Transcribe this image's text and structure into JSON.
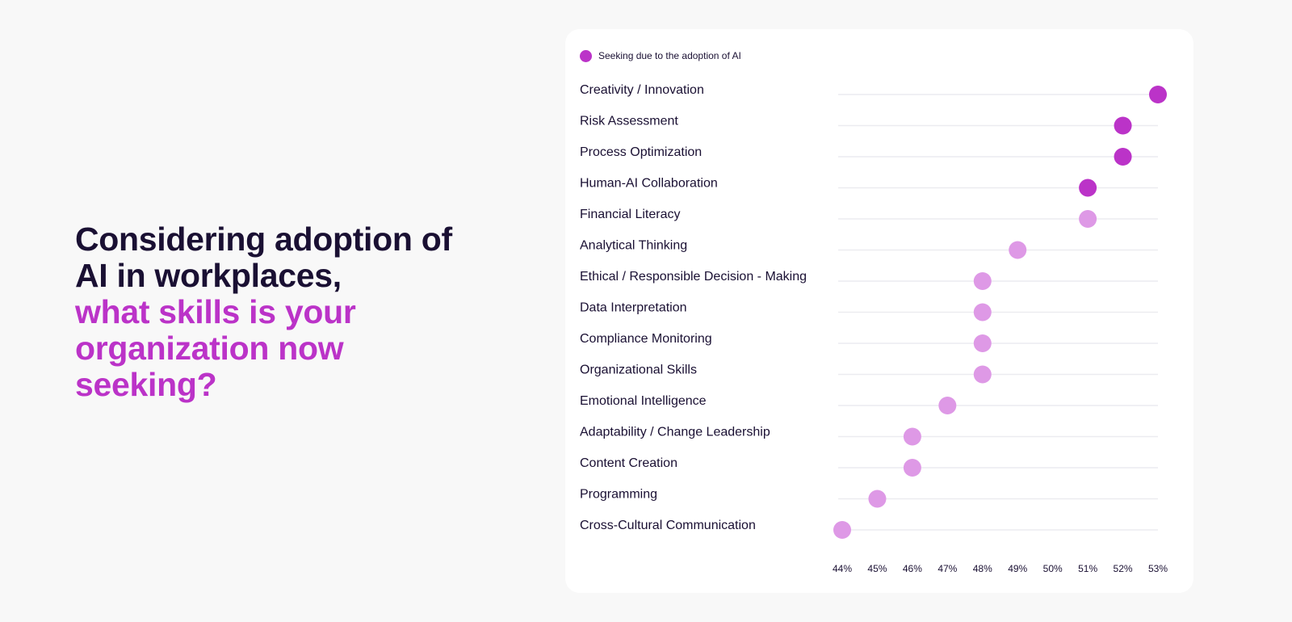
{
  "headline": {
    "dark": "Considering adoption of AI in workplaces,",
    "accent": "what skills is your organization now seeking?"
  },
  "colors": {
    "accent": "#bb33c8",
    "highlight": "#bb33c8",
    "muted": "#de99e6",
    "text": "#1a1033",
    "gridline": "#ececf0",
    "background": "#f8f8f8",
    "card": "#ffffff"
  },
  "chart_data": {
    "type": "dot",
    "legend": [
      {
        "name": "Seeking due to the adoption of AI",
        "color": "#bb33c8"
      }
    ],
    "categories": [
      "Creativity / Innovation",
      "Risk Assessment",
      "Process Optimization",
      "Human-AI Collaboration",
      "Financial Literacy",
      "Analytical Thinking",
      "Ethical / Responsible Decision - Making",
      "Data Interpretation",
      "Compliance Monitoring",
      "Organizational Skills",
      "Emotional Intelligence",
      "Adaptability / Change Leadership",
      "Content Creation",
      "Programming",
      "Cross-Cultural Communication"
    ],
    "series": [
      {
        "name": "Seeking due to the adoption of AI",
        "values": [
          53,
          52,
          52,
          51,
          51,
          49,
          48,
          48,
          48,
          48,
          47,
          46,
          46,
          45,
          44
        ],
        "highlighted": [
          true,
          true,
          true,
          true,
          false,
          false,
          false,
          false,
          false,
          false,
          false,
          false,
          false,
          false,
          false
        ]
      }
    ],
    "xlim": [
      44,
      53
    ],
    "xticks": [
      "44%",
      "45%",
      "46%",
      "47%",
      "48%",
      "49%",
      "50%",
      "51%",
      "52%",
      "53%"
    ],
    "xlabel": "",
    "ylabel": "",
    "grid": true,
    "legend_position": "top-left"
  }
}
